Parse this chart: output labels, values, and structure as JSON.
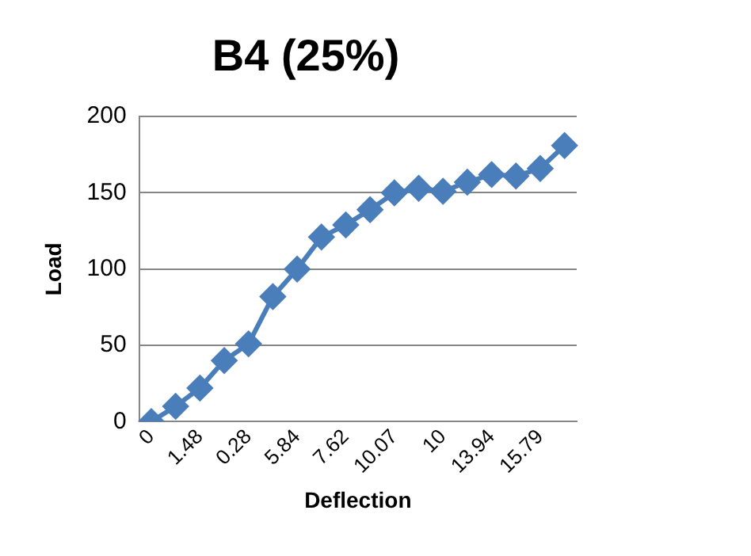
{
  "chart_data": {
    "type": "line",
    "title": "B4 (25%)",
    "xlabel": "Deflection",
    "ylabel": "Load",
    "categories": [
      "0",
      null,
      "1.48",
      null,
      "0.28",
      null,
      "5.84",
      null,
      "7.62",
      null,
      "10.07",
      null,
      "10",
      null,
      "13.94",
      null,
      "15.79",
      null
    ],
    "series": [
      {
        "color": "#4a7ebb",
        "values": [
          0,
          10,
          22,
          40,
          51,
          82,
          100,
          121,
          129,
          139,
          150,
          153,
          151,
          157,
          162,
          161,
          166,
          181
        ]
      }
    ],
    "ylim": [
      0,
      200
    ],
    "yticks": [
      0,
      50,
      100,
      150,
      200
    ],
    "grid": "y",
    "legend": false,
    "marker": "diamond",
    "line_style": "solid"
  }
}
